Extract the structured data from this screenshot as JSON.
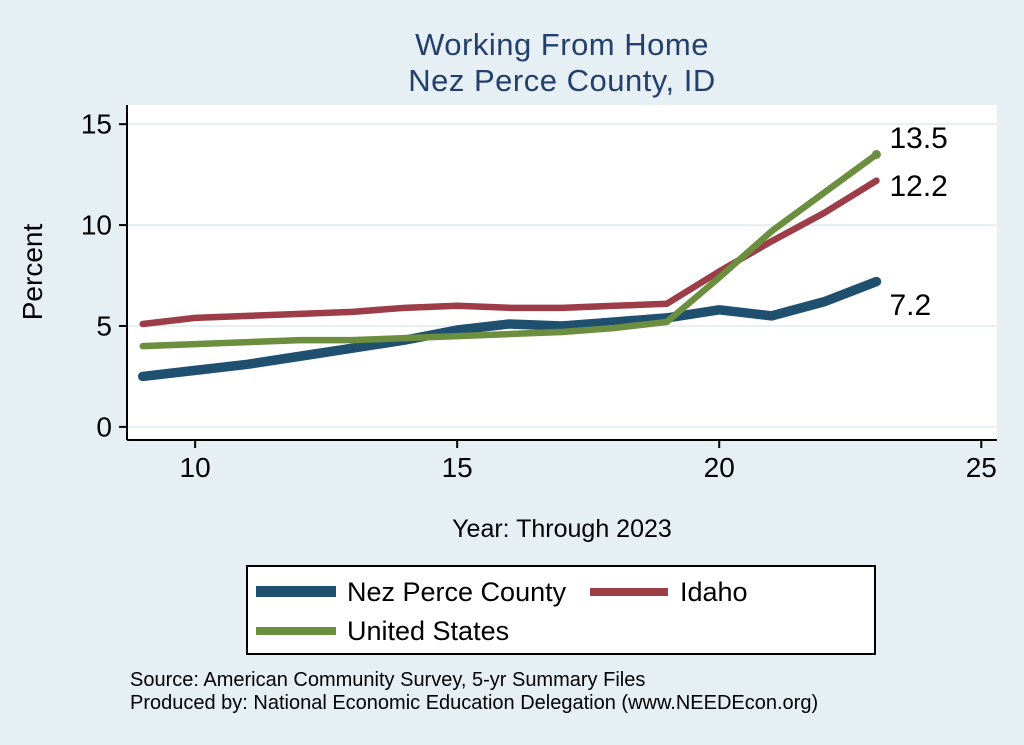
{
  "chart_data": {
    "type": "line",
    "title": "Working From Home",
    "subtitle": "Nez Perce County, ID",
    "xlabel": "Year: Through 2023",
    "ylabel": "Percent",
    "x": [
      9,
      10,
      11,
      12,
      13,
      14,
      15,
      16,
      17,
      18,
      19,
      20,
      21,
      22,
      23
    ],
    "x_ticks": [
      10,
      15,
      20,
      25
    ],
    "y_ticks": [
      0,
      5,
      10,
      15
    ],
    "xlim": [
      8.7,
      25.3
    ],
    "ylim": [
      -0.65,
      15.95
    ],
    "grid": "horizontal-only",
    "legend_position": "bottom",
    "series": [
      {
        "name": "Nez Perce County",
        "color": "#20506f",
        "line_width": 9.5,
        "values": [
          2.5,
          2.8,
          3.1,
          3.5,
          3.9,
          4.3,
          4.8,
          5.1,
          5.0,
          5.2,
          5.4,
          5.8,
          5.5,
          6.2,
          7.2
        ],
        "end_label": "7.2",
        "end_label_dy": 24,
        "end_marker": false
      },
      {
        "name": "Idaho",
        "color": "#9c3d48",
        "line_width": 6.5,
        "values": [
          5.1,
          5.4,
          5.5,
          5.6,
          5.7,
          5.9,
          6.0,
          5.9,
          5.9,
          6.0,
          6.1,
          7.7,
          9.2,
          10.6,
          12.2
        ],
        "end_label": "12.2",
        "end_label_dy": 6,
        "end_marker": false
      },
      {
        "name": "United States",
        "color": "#6b8f3e",
        "line_width": 6.5,
        "values": [
          4.0,
          4.1,
          4.2,
          4.3,
          4.3,
          4.4,
          4.5,
          4.6,
          4.7,
          4.9,
          5.2,
          7.4,
          9.7,
          11.6,
          13.5
        ],
        "end_label": "13.5",
        "end_label_dy": -16,
        "end_marker": true
      }
    ]
  },
  "footer": {
    "source": "Source: American Community Survey, 5-yr Summary Files",
    "produced_by": "Produced by: National Economic Education Delegation (www.NEEDEcon.org)"
  },
  "colors": {
    "background": "#e6eff3",
    "plot_background": "#ffffff",
    "gridline": "#dfeaf1",
    "axis": "#000000",
    "title_text": "#233f6b",
    "tick_text": "#000000",
    "data_label_text": "#000000",
    "legend_border": "#000000",
    "legend_background": "#ffffff"
  }
}
